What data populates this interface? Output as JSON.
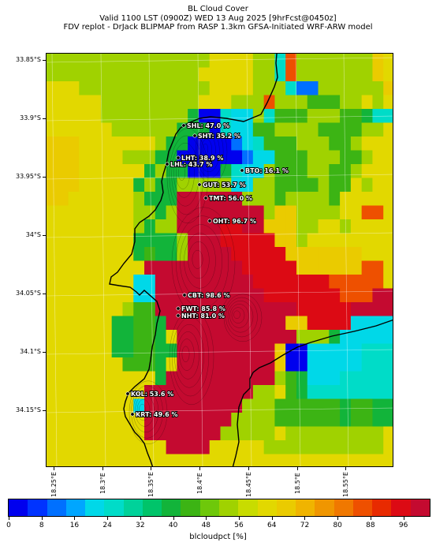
{
  "title": {
    "line1": "BL Cloud Cover",
    "line2": "Valid 1100 LST (0900Z) WED 13 Aug 2025 [9hrFcst@0450z]",
    "line3": "FDV replot - DrJack BLIPMAP from RASP 1.3km GFSA-Initiated WRF-ARW model"
  },
  "axes": {
    "y_labels": [
      "33.85°S",
      "33.9°S",
      "33.95°S",
      "34°S",
      "34.05°S",
      "34.1°S",
      "34.15°S"
    ],
    "x_labels": [
      "18.25°E",
      "18.3°E",
      "18.35°E",
      "18.4°E",
      "18.45°E",
      "18.5°E",
      "18.55°E"
    ]
  },
  "colorbar": {
    "label": "blcloudpct [%]",
    "ticks": [
      "0",
      "8",
      "16",
      "24",
      "32",
      "40",
      "48",
      "56",
      "64",
      "72",
      "80",
      "88",
      "96"
    ],
    "colors": [
      "#0000ee",
      "#0033ff",
      "#0070ff",
      "#00a6ff",
      "#00d8e8",
      "#00dcc8",
      "#00d29a",
      "#00c46a",
      "#12b43a",
      "#3cb414",
      "#6ec80a",
      "#a0d200",
      "#c8dc00",
      "#e2d800",
      "#eacb00",
      "#f0b400",
      "#f09600",
      "#f07800",
      "#ee5000",
      "#e82a00",
      "#dc0a14",
      "#c40a30"
    ]
  },
  "stations": [
    {
      "code": "SHL",
      "value": "47.0",
      "label": "SHL: 47.0 %"
    },
    {
      "code": "SHT",
      "value": "35.2",
      "label": "SHT: 35.2 %"
    },
    {
      "code": "LHT",
      "value": "38.9",
      "label": "LHT: 38.9 %"
    },
    {
      "code": "LHL",
      "value": "43.7",
      "label": "LHL: 43.7 %"
    },
    {
      "code": "BTO",
      "value": "16.1",
      "label": "BTO: 16.1 %"
    },
    {
      "code": "GUT",
      "value": "53.7",
      "label": "GUT: 53.7 %"
    },
    {
      "code": "TMT",
      "value": "56.0",
      "label": "TMT: 56.0 %"
    },
    {
      "code": "OHT",
      "value": "96.7",
      "label": "OHT: 96.7 %"
    },
    {
      "code": "CBT",
      "value": "98.6",
      "label": "CBT: 98.6 %"
    },
    {
      "code": "FWT",
      "value": "85.8",
      "label": "FWT: 85.8 %"
    },
    {
      "code": "NHT",
      "value": "81.0",
      "label": "NHT: 81.0 %"
    },
    {
      "code": "KOL",
      "value": "53.6",
      "label": "KOL: 53.6 %"
    },
    {
      "code": "KRT",
      "value": "49.6",
      "label": "KRT: 49.6 %"
    }
  ]
}
